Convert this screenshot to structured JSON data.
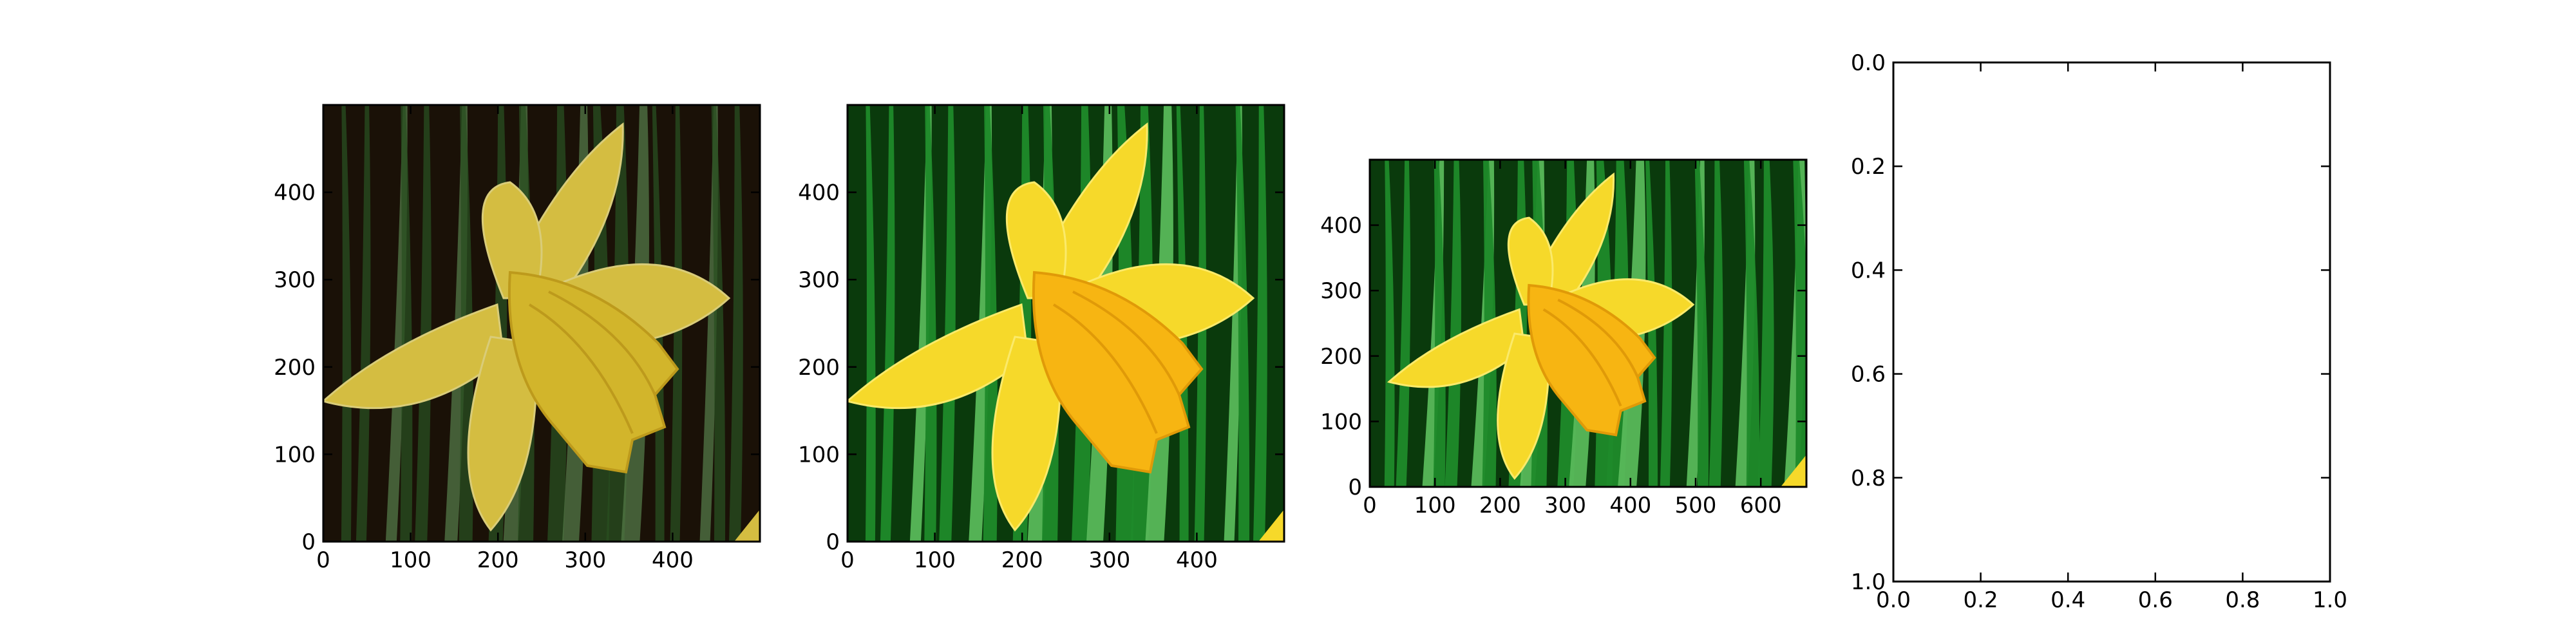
{
  "chart_data": [
    {
      "type": "image",
      "content": "yellow daffodil flower against green leaves, darker muted tones",
      "xlim": [
        0,
        500
      ],
      "ylim": [
        500,
        0
      ],
      "xticks": [
        "0",
        "100",
        "200",
        "300",
        "400"
      ],
      "yticks": [
        "0",
        "100",
        "200",
        "300",
        "400"
      ],
      "xtick_values": [
        0,
        100,
        200,
        300,
        400
      ],
      "ytick_values": [
        0,
        100,
        200,
        300,
        400
      ],
      "colors": {
        "sky": "#1e1408",
        "leaf": "#2f5a26",
        "leaf_light": "#5f8a52",
        "petal": "#f2d84a",
        "petal_light": "#f8e98a",
        "trumpet": "#f0cf32",
        "trumpet_dark": "#d8b020"
      }
    },
    {
      "type": "image",
      "content": "yellow daffodil flower against green leaves, vivid saturated tones",
      "xlim": [
        0,
        500
      ],
      "ylim": [
        500,
        0
      ],
      "xticks": [
        "0",
        "100",
        "200",
        "300",
        "400"
      ],
      "yticks": [
        "0",
        "100",
        "200",
        "300",
        "400"
      ],
      "xtick_values": [
        0,
        100,
        200,
        300,
        400
      ],
      "ytick_values": [
        0,
        100,
        200,
        300,
        400
      ],
      "colors": {
        "sky": "#0a3a0c",
        "leaf": "#1f8a2a",
        "leaf_light": "#58b85a",
        "petal": "#f6d92a",
        "petal_light": "#fbea6a",
        "trumpet": "#f7b512",
        "trumpet_dark": "#e09a08"
      }
    },
    {
      "type": "image",
      "content": "yellow daffodil flower against green leaves, wider crop",
      "xlim": [
        0,
        670
      ],
      "ylim": [
        500,
        0
      ],
      "xticks": [
        "0",
        "100",
        "200",
        "300",
        "400",
        "500",
        "600"
      ],
      "yticks": [
        "0",
        "100",
        "200",
        "300",
        "400"
      ],
      "xtick_values": [
        0,
        100,
        200,
        300,
        400,
        500,
        600
      ],
      "ytick_values": [
        0,
        100,
        200,
        300,
        400
      ],
      "colors": {
        "sky": "#0a3a0c",
        "leaf": "#1f8a2a",
        "leaf_light": "#58b85a",
        "petal": "#f6d92a",
        "petal_light": "#fbea6a",
        "trumpet": "#f7b512",
        "trumpet_dark": "#e09a08"
      }
    },
    {
      "type": "line",
      "content": "empty axes",
      "series": [],
      "xlim": [
        0,
        1
      ],
      "ylim": [
        0,
        1
      ],
      "xticks": [
        "0.0",
        "0.2",
        "0.4",
        "0.6",
        "0.8",
        "1.0"
      ],
      "yticks": [
        "0.0",
        "0.2",
        "0.4",
        "0.6",
        "0.8",
        "1.0"
      ],
      "xtick_values": [
        0,
        0.2,
        0.4,
        0.6,
        0.8,
        1.0
      ],
      "ytick_values": [
        0,
        0.2,
        0.4,
        0.6,
        0.8,
        1.0
      ]
    }
  ]
}
